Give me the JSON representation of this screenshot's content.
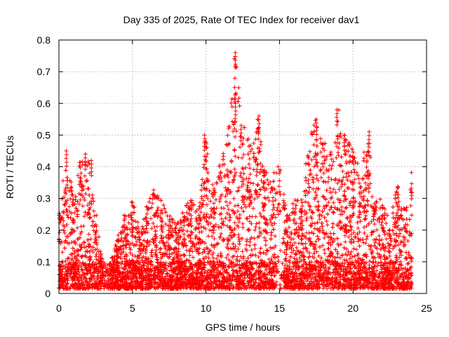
{
  "chart_data": {
    "type": "scatter",
    "title": "Day 335 of 2025, Rate Of TEC Index for receiver dav1",
    "xlabel": "GPS time / hours",
    "ylabel": "ROTI / TECUs",
    "xlim": [
      0,
      25
    ],
    "ylim": [
      0,
      0.8
    ],
    "x_ticks": [
      0,
      5,
      10,
      15,
      20,
      25
    ],
    "x_tick_labels": [
      "0",
      "5",
      "10",
      "15",
      "20",
      "25"
    ],
    "y_ticks": [
      0,
      0.1,
      0.2,
      0.3,
      0.4,
      0.5,
      0.6,
      0.7,
      0.8
    ],
    "y_tick_labels": [
      "0",
      "0.1",
      "0.2",
      "0.3",
      "0.4",
      "0.5",
      "0.6",
      "0.7",
      "0.8"
    ],
    "grid": true,
    "marker": "+",
    "color": "#ff0000",
    "envelope": {
      "description_hours": "approximate upper extent of ROTI per hour bin",
      "hours": [
        0,
        0.5,
        1,
        1.5,
        2,
        2.5,
        3,
        3.5,
        4,
        4.5,
        5,
        5.5,
        6,
        6.5,
        7,
        7.5,
        8,
        8.5,
        9,
        9.5,
        10,
        10.5,
        11,
        11.5,
        12,
        12.5,
        13,
        13.5,
        14,
        14.5,
        15,
        15.5,
        16,
        16.5,
        17,
        17.5,
        18,
        18.5,
        19,
        19.5,
        20,
        20.5,
        21,
        21.5,
        22,
        22.5,
        23,
        23.5,
        24
      ],
      "max_roti": [
        0.25,
        0.45,
        0.3,
        0.44,
        0.42,
        0.25,
        0.1,
        0.1,
        0.18,
        0.25,
        0.3,
        0.2,
        0.28,
        0.33,
        0.3,
        0.25,
        0.22,
        0.27,
        0.3,
        0.25,
        0.5,
        0.35,
        0.45,
        0.5,
        0.76,
        0.54,
        0.48,
        0.56,
        0.4,
        0.38,
        0.42,
        0.25,
        0.3,
        0.3,
        0.5,
        0.55,
        0.5,
        0.45,
        0.58,
        0.5,
        0.45,
        0.4,
        0.51,
        0.3,
        0.3,
        0.22,
        0.35,
        0.27,
        0.39
      ]
    },
    "notable_points": [
      {
        "x": 0.5,
        "y": 0.45
      },
      {
        "x": 1.8,
        "y": 0.44
      },
      {
        "x": 2.2,
        "y": 0.42
      },
      {
        "x": 9.9,
        "y": 0.5
      },
      {
        "x": 12.0,
        "y": 0.76
      },
      {
        "x": 12.0,
        "y": 0.6
      },
      {
        "x": 12.4,
        "y": 0.53
      },
      {
        "x": 13.6,
        "y": 0.56
      },
      {
        "x": 17.5,
        "y": 0.55
      },
      {
        "x": 18.9,
        "y": 0.58
      },
      {
        "x": 19.4,
        "y": 0.5
      },
      {
        "x": 21.1,
        "y": 0.51
      }
    ]
  }
}
